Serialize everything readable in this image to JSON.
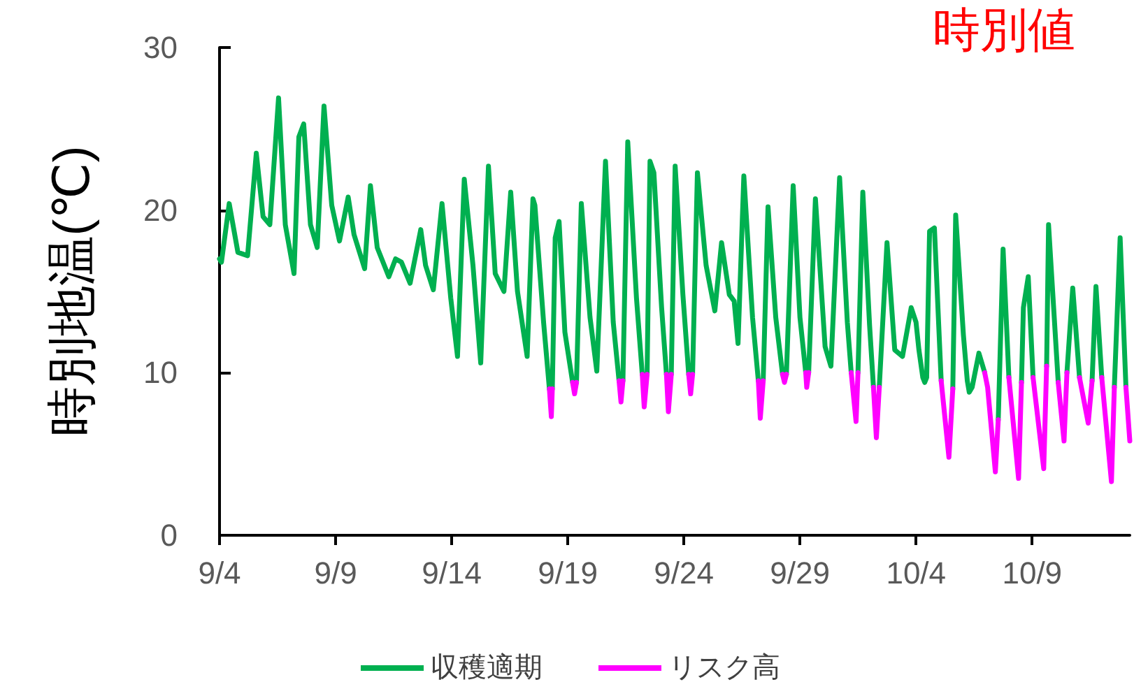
{
  "chart_data": {
    "type": "line",
    "title": "時別値",
    "ylabel": "時別地温(℃)",
    "xlim": [
      "--09-04T00:00",
      "--10-13T05:00"
    ],
    "ylim": [
      0,
      30
    ],
    "yticks": [
      0,
      10,
      20,
      30
    ],
    "xticks": [
      {
        "value": "--09-04",
        "label": "9/4"
      },
      {
        "value": "--09-09",
        "label": "9/9"
      },
      {
        "value": "--09-14",
        "label": "9/14"
      },
      {
        "value": "--09-19",
        "label": "9/19"
      },
      {
        "value": "--09-24",
        "label": "9/24"
      },
      {
        "value": "--09-29",
        "label": "9/29"
      },
      {
        "value": "--10-04",
        "label": "10/4"
      },
      {
        "value": "--10-09",
        "label": "10/9"
      }
    ],
    "legend": "bottom",
    "marker": "none",
    "series": [
      {
        "name": "収穫適期",
        "color": "#00b050",
        "x": [
          "--09-04T00:00",
          "--09-04T02:00",
          "--09-04T10:00",
          "--09-04T19:00",
          "--09-05T05:00",
          "--09-05T14:00",
          "--09-05T21:00",
          "--09-06T04:00",
          "--09-06T13:00",
          "--09-06T20:00",
          "--09-07T05:00",
          "--09-07T10:00",
          "--09-07T15:00",
          "--09-07T22:00",
          "--09-08T05:00",
          "--09-08T12:00",
          "--09-08T20:00",
          "--09-09T04:00",
          "--09-09T13:00",
          "--09-09T19:00",
          "--09-10T06:00",
          "--09-10T12:00",
          "--09-10T19:00",
          "--09-11T07:00",
          "--09-11T14:00",
          "--09-11T20:00",
          "--09-12T05:00",
          "--09-12T16:00",
          "--09-12T21:00",
          "--09-13T05:00",
          "--09-13T14:00",
          "--09-13T23:00",
          "--09-14T06:00",
          "--09-14T13:00",
          "--09-14T22:00",
          "--09-15T06:00",
          "--09-15T14:00",
          "--09-15T21:00",
          "--09-16T06:00",
          "--09-16T13:00",
          "--09-16T20:00",
          "--09-17T06:00",
          "--09-17T12:00",
          "--09-17T14:00",
          "--09-17T23:00",
          "--09-18T05:00",
          "--09-18T07:00",
          "--09-18T08:00",
          "--09-18T11:00",
          "--09-18T15:00",
          "--09-18T21:00",
          "--09-19T05:00",
          "--09-19T07:00",
          "--09-19T09:00",
          "--09-19T14:00",
          "--09-19T23:00",
          "--09-20T06:00",
          "--09-20T15:00",
          "--09-20T23:00",
          "--09-21T05:00",
          "--09-21T07:00",
          "--09-21T09:00",
          "--09-21T14:00",
          "--09-21T23:00",
          "--09-22T05:00",
          "--09-22T07:00",
          "--09-22T10:00",
          "--09-22T13:00",
          "--09-22T17:00",
          "--09-23T01:00",
          "--09-23T06:00",
          "--09-23T08:00",
          "--09-23T11:00",
          "--09-23T15:00",
          "--09-23T23:00",
          "--09-24T05:00",
          "--09-24T07:00",
          "--09-24T09:00",
          "--09-24T14:00",
          "--09-24T23:00",
          "--09-25T08:00",
          "--09-25T15:00",
          "--09-25T23:00",
          "--09-26T04:00",
          "--09-26T08:00",
          "--09-26T14:00",
          "--09-26T23:00",
          "--09-27T05:00",
          "--09-27T07:00",
          "--09-27T10:00",
          "--09-27T15:00",
          "--09-27T23:00",
          "--09-28T06:00",
          "--09-28T08:00",
          "--09-28T10:00",
          "--09-28T17:00",
          "--09-29T00:00",
          "--09-29T06:00",
          "--09-29T07:00",
          "--09-29T09:00",
          "--09-29T16:00",
          "--09-30T02:00",
          "--09-30T08:00",
          "--09-30T17:00",
          "--10-01T01:00",
          "--10-01T05:00",
          "--10-01T10:00",
          "--10-01T12:00",
          "--10-01T17:00",
          "--10-02T00:00",
          "--10-02T04:00",
          "--10-02T07:00",
          "--10-02T10:00",
          "--10-02T18:00",
          "--10-03T02:00",
          "--10-03T10:00",
          "--10-03T19:00",
          "--10-04T00:00",
          "--10-04T03:00",
          "--10-04T07:00",
          "--10-04T09:00",
          "--10-04T11:00",
          "--10-04T14:00",
          "--10-04T19:00",
          "--10-05T02:00",
          "--10-05T10:00",
          "--10-05T14:00",
          "--10-05T17:00",
          "--10-06T01:00",
          "--10-06T05:00",
          "--10-06T07:00",
          "--10-06T10:00",
          "--10-06T17:00",
          "--10-06T23:00",
          "--10-07T10:00",
          "--10-07T13:00",
          "--10-07T18:00",
          "--10-08T00:00",
          "--10-08T10:00",
          "--10-08T13:00",
          "--10-08T15:00",
          "--10-08T20:00",
          "--10-09T01:00",
          "--10-09T12:00",
          "--10-09T15:00",
          "--10-09T17:00",
          "--10-10T03:00",
          "--10-10T09:00",
          "--10-10T12:00",
          "--10-10T18:00",
          "--10-11T01:00",
          "--10-11T10:00",
          "--10-11T14:00",
          "--10-11T18:00",
          "--10-12T00:00",
          "--10-12T10:00",
          "--10-12T13:00",
          "--10-12T19:00",
          "--10-13T01:00"
        ],
        "values": [
          17.0,
          16.8,
          20.4,
          17.4,
          17.2,
          23.5,
          19.6,
          19.1,
          26.9,
          19.1,
          16.1,
          24.5,
          25.3,
          19.1,
          17.7,
          26.4,
          20.3,
          18.1,
          20.8,
          18.5,
          16.4,
          21.5,
          17.7,
          15.9,
          17.0,
          16.8,
          15.5,
          18.8,
          16.6,
          15.1,
          20.4,
          14.6,
          11.0,
          21.9,
          16.6,
          10.6,
          22.7,
          16.1,
          15.0,
          21.1,
          15.0,
          11.0,
          20.7,
          20.3,
          13.1,
          9.0,
          null,
          9.0,
          18.3,
          19.3,
          12.5,
          9.4,
          null,
          9.4,
          20.4,
          13.4,
          10.1,
          23.0,
          13.1,
          9.5,
          null,
          9.5,
          24.2,
          14.6,
          9.9,
          null,
          9.9,
          23.0,
          22.3,
          14.0,
          9.9,
          null,
          9.9,
          22.7,
          14.8,
          9.9,
          null,
          9.9,
          22.3,
          16.6,
          13.8,
          18.0,
          14.8,
          14.4,
          11.8,
          22.1,
          13.4,
          9.5,
          null,
          9.5,
          20.2,
          13.4,
          9.9,
          null,
          9.9,
          21.5,
          13.4,
          10.0,
          null,
          10.0,
          20.7,
          11.6,
          10.4,
          22.0,
          13.1,
          10.0,
          null,
          10.0,
          21.1,
          12.9,
          9.1,
          null,
          9.1,
          18.0,
          11.4,
          11.0,
          14.0,
          13.1,
          11.4,
          9.7,
          9.4,
          9.7,
          18.7,
          18.9,
          9.5,
          null,
          9.0,
          19.7,
          12.3,
          9.5,
          8.8,
          9.1,
          11.2,
          10.0,
          null,
          7.1,
          17.6,
          9.7,
          null,
          9.4,
          14.0,
          15.9,
          9.7,
          null,
          10.4,
          19.1,
          9.4,
          null,
          10.0,
          15.2,
          9.7,
          null,
          9.5,
          15.3,
          9.7,
          null,
          9.1,
          18.3,
          9.1
        ]
      },
      {
        "name": "リスク高",
        "color": "#ff00ff",
        "x": [
          "--09-18T05:00",
          "--09-18T07:00",
          "--09-18T08:00",
          "--09-18T10:00",
          "--09-19T05:00",
          "--09-19T07:00",
          "--09-19T09:00",
          "--09-19T12:00",
          "--09-21T05:00",
          "--09-21T07:00",
          "--09-21T09:00",
          "--09-21T12:00",
          "--09-22T05:00",
          "--09-22T07:00",
          "--09-22T10:00",
          "--09-22T12:00",
          "--09-23T06:00",
          "--09-23T08:00",
          "--09-23T11:00",
          "--09-23T12:00",
          "--09-24T05:00",
          "--09-24T07:00",
          "--09-24T09:00",
          "--09-24T12:00",
          "--09-27T05:00",
          "--09-27T07:00",
          "--09-27T10:00",
          "--09-27T12:00",
          "--09-28T06:00",
          "--09-28T08:00",
          "--09-28T10:00",
          "--09-28T12:00",
          "--09-29T06:00",
          "--09-29T07:00",
          "--09-29T09:00",
          "--09-29T12:00",
          "--10-01T05:00",
          "--10-01T10:00",
          "--10-01T12:00",
          "--10-01T14:00",
          "--10-02T04:00",
          "--10-02T07:00",
          "--10-02T10:00",
          "--10-02T12:00",
          "--10-05T02:00",
          "--10-05T10:00",
          "--10-05T14:00",
          "--10-05T15:00",
          "--10-06T23:00",
          "--10-07T02:00",
          "--10-07T10:00",
          "--10-07T13:00",
          "--10-07T14:00",
          "--10-08T00:00",
          "--10-08T10:00",
          "--10-08T13:00",
          "--10-08T14:00",
          "--10-09T01:00",
          "--10-09T12:00",
          "--10-09T15:00",
          "--10-09T16:00",
          "--10-10T03:00",
          "--10-10T09:00",
          "--10-10T12:00",
          "--10-10T14:00",
          "--10-11T01:00",
          "--10-11T10:00",
          "--10-11T14:00",
          "--10-11T17:00",
          "--10-12T00:00",
          "--10-12T10:00",
          "--10-12T13:00",
          "--10-12T14:00",
          "--10-13T01:00",
          "--10-13T05:00"
        ],
        "values": [
          9.0,
          7.3,
          9.0,
          null,
          9.4,
          8.7,
          9.4,
          null,
          9.5,
          8.2,
          9.5,
          null,
          9.9,
          7.9,
          9.9,
          null,
          9.9,
          7.6,
          9.9,
          null,
          9.9,
          8.7,
          9.9,
          null,
          9.5,
          7.2,
          9.5,
          null,
          9.9,
          9.4,
          9.9,
          null,
          10.0,
          9.1,
          10.0,
          null,
          10.0,
          7.0,
          10.0,
          null,
          9.1,
          6.0,
          9.1,
          null,
          9.5,
          4.8,
          9.0,
          null,
          10.0,
          9.1,
          3.9,
          7.1,
          null,
          9.7,
          3.5,
          9.4,
          null,
          9.7,
          4.1,
          10.4,
          null,
          9.4,
          5.8,
          10.0,
          null,
          9.7,
          6.9,
          9.5,
          null,
          9.7,
          3.3,
          9.1,
          null,
          9.1,
          5.8
        ]
      }
    ]
  }
}
